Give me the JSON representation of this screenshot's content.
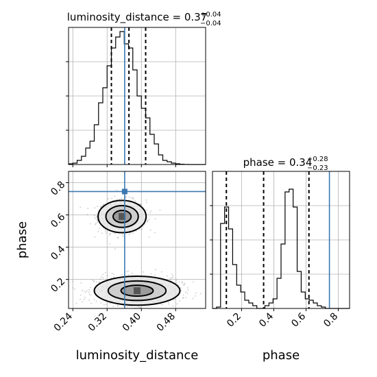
{
  "chart_data": [
    {
      "type": "histogram",
      "panel": "luminosity_distance-marginal",
      "title_param": "luminosity_distance",
      "title_value": "0.37",
      "title_plus": "+0.04",
      "title_minus": "−0.04",
      "xlim": [
        0.23,
        0.55
      ],
      "bin_edges": [
        0.23,
        0.24,
        0.25,
        0.26,
        0.27,
        0.28,
        0.29,
        0.3,
        0.31,
        0.32,
        0.33,
        0.34,
        0.35,
        0.36,
        0.37,
        0.38,
        0.39,
        0.4,
        0.41,
        0.42,
        0.43,
        0.44,
        0.45,
        0.46,
        0.47,
        0.48,
        0.49,
        0.5,
        0.51,
        0.52,
        0.53,
        0.54,
        0.55
      ],
      "counts": [
        0.005,
        0.01,
        0.03,
        0.06,
        0.12,
        0.17,
        0.29,
        0.45,
        0.56,
        0.72,
        0.85,
        0.93,
        0.97,
        0.88,
        0.85,
        0.69,
        0.5,
        0.41,
        0.34,
        0.22,
        0.15,
        0.07,
        0.03,
        0.02,
        0.01,
        0.005,
        0.002,
        0.001,
        0.0,
        0.0,
        0.0,
        0.0
      ],
      "ylim": [
        0,
        1.0
      ],
      "quantiles": [
        0.33,
        0.371,
        0.41
      ],
      "truth": 0.361,
      "grid": true
    },
    {
      "type": "histogram",
      "panel": "phase-marginal",
      "title_param": "phase",
      "title_value": "0.34",
      "title_plus": "+0.28",
      "title_minus": "−0.23",
      "xlim": [
        0.02,
        0.87
      ],
      "bin_edges": [
        0.02,
        0.045,
        0.07,
        0.095,
        0.12,
        0.145,
        0.17,
        0.195,
        0.22,
        0.245,
        0.27,
        0.295,
        0.32,
        0.345,
        0.37,
        0.395,
        0.42,
        0.445,
        0.47,
        0.495,
        0.52,
        0.545,
        0.57,
        0.595,
        0.62,
        0.645,
        0.67,
        0.695,
        0.72,
        0.745,
        0.77,
        0.795,
        0.82,
        0.845,
        0.87
      ],
      "counts": [
        0.0,
        0.01,
        0.62,
        0.74,
        0.58,
        0.32,
        0.17,
        0.12,
        0.06,
        0.04,
        0.02,
        0.0,
        0.0,
        0.02,
        0.04,
        0.07,
        0.22,
        0.47,
        0.85,
        0.87,
        0.74,
        0.27,
        0.12,
        0.07,
        0.06,
        0.04,
        0.02,
        0.01,
        0.0,
        0.0,
        0.0,
        0.0,
        0.0,
        0.0
      ],
      "ylim": [
        0,
        1.0
      ],
      "quantiles": [
        0.106,
        0.337,
        0.618
      ],
      "truth": 0.745,
      "xticks": [
        0.2,
        0.4,
        0.6,
        0.8
      ],
      "xtick_labels": [
        "0.2",
        "0.4",
        "0.6",
        "0.8"
      ],
      "xlabel": "phase",
      "grid": true
    },
    {
      "type": "scatter",
      "panel": "joint-2d",
      "xlim": [
        0.23,
        0.55
      ],
      "ylim": [
        0.02,
        0.87
      ],
      "xticks": [
        0.24,
        0.32,
        0.4,
        0.48
      ],
      "xtick_labels": [
        "0.24",
        "0.32",
        "0.40",
        "0.48"
      ],
      "yticks": [
        0.2,
        0.4,
        0.6,
        0.8
      ],
      "ytick_labels": [
        "0.2",
        "0.4",
        "0.6",
        "0.8"
      ],
      "xlabel": "luminosity_distance",
      "ylabel": "phase",
      "truth": [
        0.361,
        0.745
      ],
      "modes": [
        {
          "center": [
            0.355,
            0.59
          ],
          "sigma": [
            0.028,
            0.05
          ],
          "n": 650
        },
        {
          "center": [
            0.39,
            0.13
          ],
          "sigma": [
            0.05,
            0.045
          ],
          "n": 850
        }
      ],
      "grid": true
    }
  ]
}
